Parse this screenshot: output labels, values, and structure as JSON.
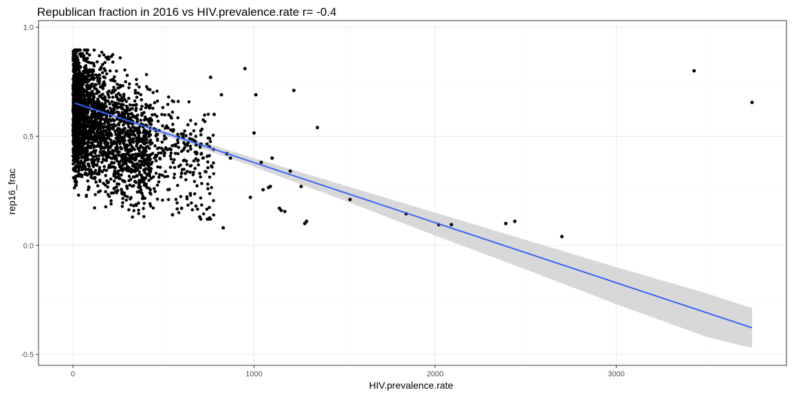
{
  "chart_data": {
    "type": "scatter",
    "title": "Republican fraction in 2016 vs HIV.prevalence.rate  r= -0.4",
    "xlabel": "HIV.prevalence.rate",
    "ylabel": "rep16_frac",
    "xlim": [
      -190,
      3940
    ],
    "ylim": [
      -0.55,
      1.03
    ],
    "x_ticks": [
      0,
      1000,
      2000,
      3000
    ],
    "x_tick_labels": [
      "0",
      "1000",
      "2000",
      "3000"
    ],
    "y_ticks": [
      -0.5,
      0.0,
      0.5,
      1.0
    ],
    "y_tick_labels": [
      "-0.5",
      "0.0",
      "0.5",
      "1.0"
    ],
    "grid": true,
    "legend": "none",
    "colors": {
      "points": "#000000",
      "fit_line": "#3366ff",
      "confidence_band": "#d4d4d4",
      "panel_border": "#333333",
      "grid_major": "#ebebeb",
      "grid_minor": "#f5f5f5"
    },
    "regression": {
      "method": "lm",
      "x_start": 10,
      "y_start": 0.652,
      "x_end": 3750,
      "y_end": -0.378,
      "ci_band": [
        {
          "x": 10,
          "lo": 0.628,
          "hi": 0.676
        },
        {
          "x": 500,
          "lo": 0.505,
          "hi": 0.53
        },
        {
          "x": 1000,
          "lo": 0.36,
          "hi": 0.4
        },
        {
          "x": 1500,
          "lo": 0.205,
          "hi": 0.275
        },
        {
          "x": 2000,
          "lo": 0.045,
          "hi": 0.15
        },
        {
          "x": 2500,
          "lo": -0.11,
          "hi": 0.025
        },
        {
          "x": 3000,
          "lo": -0.27,
          "hi": -0.1
        },
        {
          "x": 3500,
          "lo": -0.42,
          "hi": -0.22
        },
        {
          "x": 3750,
          "lo": -0.47,
          "hi": -0.288
        }
      ]
    },
    "series": [
      {
        "x": [
          950,
          1010,
          1000,
          1220,
          1350,
          3430,
          3750,
          1100,
          1200,
          1290,
          1530,
          1840,
          2020,
          2090,
          2390,
          2440,
          2700,
          1150,
          1170,
          830,
          850,
          870,
          1080,
          1260,
          1280,
          1050,
          1040,
          1090,
          780,
          760,
          820,
          650,
          700,
          600,
          550,
          980,
          1140
        ],
        "y": [
          0.81,
          0.69,
          0.515,
          0.71,
          0.54,
          0.8,
          0.655,
          0.4,
          0.34,
          0.11,
          0.21,
          0.145,
          0.095,
          0.095,
          0.1,
          0.11,
          0.04,
          0.16,
          0.155,
          0.08,
          0.42,
          0.4,
          0.265,
          0.27,
          0.1,
          0.255,
          0.38,
          0.27,
          0.6,
          0.77,
          0.69,
          0.51,
          0.13,
          0.17,
          0.14,
          0.22,
          0.17
        ]
      }
    ]
  }
}
